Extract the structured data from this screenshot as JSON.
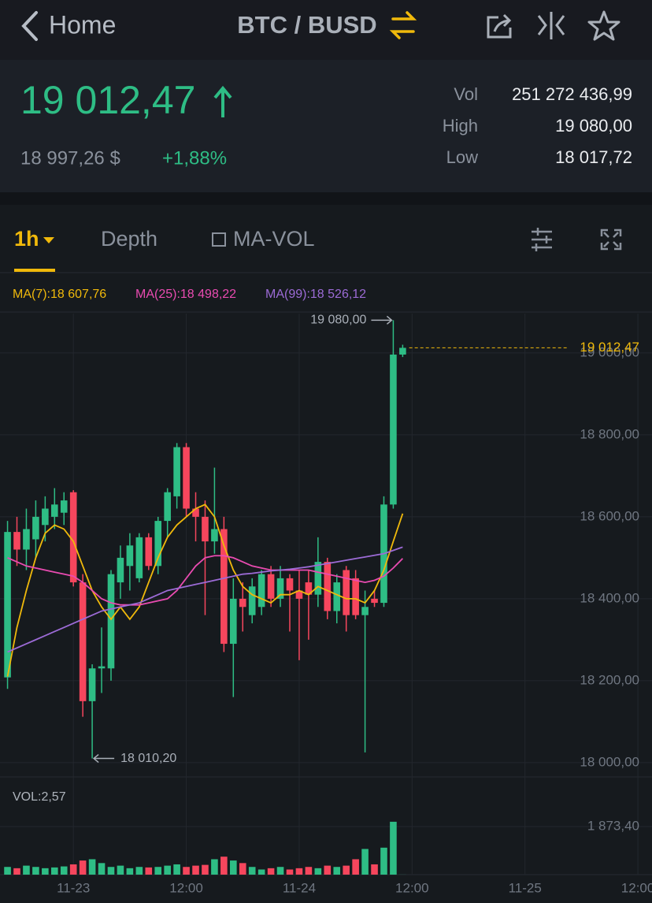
{
  "header": {
    "back": "Home",
    "pair": "BTC / BUSD"
  },
  "ticker": {
    "price": "19 012,47",
    "fiat": "18 997,26 $",
    "change": "+1,88%",
    "stats": [
      {
        "label": "Vol",
        "value": "251 272 436,99"
      },
      {
        "label": "High",
        "value": "19 080,00"
      },
      {
        "label": "Low",
        "value": "18 017,72"
      }
    ]
  },
  "tabs": [
    "1h",
    "Depth",
    "MA-VOL"
  ],
  "chart_data": [
    {
      "type": "candlestick",
      "x": [
        -7,
        -6,
        -5,
        -4,
        -3,
        -2,
        -1,
        0,
        1,
        2,
        3,
        4,
        5,
        6,
        7,
        8,
        9,
        10,
        11,
        12,
        13,
        14,
        15,
        16,
        17,
        18,
        19,
        20,
        21,
        22,
        23,
        24,
        25,
        26,
        27,
        28,
        29,
        30,
        31,
        32,
        33,
        34,
        35
      ],
      "open": [
        18208,
        18563,
        18520,
        18545,
        18580,
        18600,
        18610,
        18660,
        18440,
        18150,
        18230,
        18230,
        18440,
        18480,
        18450,
        18550,
        18480,
        18590,
        18650,
        18770,
        18620,
        18600,
        18540,
        18570,
        18290,
        18400,
        18360,
        18380,
        18460,
        18400,
        18450,
        18420,
        18440,
        18410,
        18490,
        18370,
        18470,
        18450,
        18360,
        18400,
        18390,
        18630,
        18996
      ],
      "high": [
        18590,
        18600,
        18620,
        18640,
        18650,
        18670,
        18660,
        18665,
        18460,
        18240,
        18330,
        18470,
        18530,
        18560,
        18560,
        18560,
        18600,
        18670,
        18780,
        18780,
        18660,
        18640,
        18720,
        18600,
        18450,
        18440,
        18450,
        18470,
        18480,
        18480,
        18460,
        18470,
        18470,
        18550,
        18500,
        18460,
        18480,
        18470,
        18420,
        18420,
        18650,
        19080,
        19020
      ],
      "low": [
        18180,
        18480,
        18470,
        18500,
        18540,
        18570,
        18580,
        18430,
        18112,
        18010.2,
        18170,
        18200,
        18400,
        18420,
        18440,
        18470,
        18460,
        18550,
        18620,
        18600,
        18540,
        18360,
        18510,
        18270,
        18160,
        18320,
        18340,
        18360,
        18380,
        18380,
        18320,
        18250,
        18300,
        18380,
        18350,
        18340,
        18320,
        18350,
        18025,
        18380,
        18380,
        18620,
        18990
      ],
      "close": [
        18563,
        18520,
        18570,
        18600,
        18620,
        18630,
        18640,
        18440,
        18150,
        18230,
        18235,
        18460,
        18500,
        18530,
        18550,
        18480,
        18590,
        18660,
        18770,
        18620,
        18600,
        18540,
        18570,
        18290,
        18400,
        18380,
        18430,
        18460,
        18400,
        18450,
        18420,
        18400,
        18410,
        18490,
        18370,
        18440,
        18360,
        18360,
        18380,
        18390,
        18630,
        18996,
        19012.47
      ],
      "up_color": "#2ebd85",
      "down_color": "#f6465d",
      "series": [
        {
          "name": "MA(7):18 607,76",
          "color": "#f0b90b",
          "values": [
            18210,
            18330,
            18420,
            18500,
            18560,
            18580,
            18570,
            18540,
            18480,
            18420,
            18380,
            18350,
            18380,
            18350,
            18380,
            18440,
            18500,
            18550,
            18580,
            18600,
            18620,
            18630,
            18600,
            18530,
            18470,
            18430,
            18410,
            18400,
            18390,
            18410,
            18410,
            18420,
            18410,
            18430,
            18420,
            18410,
            18400,
            18400,
            18390,
            18420,
            18470,
            18540,
            18607.76
          ]
        },
        {
          "name": "MA(25):18 498,22",
          "color": "#e94bb1",
          "values": [
            18500,
            18490,
            18480,
            18475,
            18470,
            18465,
            18460,
            18455,
            18440,
            18420,
            18400,
            18390,
            18385,
            18385,
            18385,
            18390,
            18395,
            18400,
            18420,
            18450,
            18480,
            18500,
            18505,
            18505,
            18500,
            18490,
            18480,
            18475,
            18470,
            18470,
            18470,
            18470,
            18470,
            18465,
            18460,
            18455,
            18450,
            18445,
            18440,
            18445,
            18455,
            18475,
            18498.22
          ]
        },
        {
          "name": "MA(99):18 526,12",
          "color": "#9c6bd6",
          "values": [
            18270,
            18280,
            18290,
            18300,
            18310,
            18320,
            18330,
            18340,
            18350,
            18360,
            18370,
            18375,
            18380,
            18385,
            18390,
            18400,
            18410,
            18420,
            18425,
            18430,
            18435,
            18440,
            18445,
            18450,
            18455,
            18460,
            18462,
            18465,
            18468,
            18470,
            18472,
            18475,
            18478,
            18482,
            18486,
            18490,
            18494,
            18498,
            18502,
            18506,
            18510,
            18518,
            18526.12
          ]
        }
      ],
      "xlim": [
        -7.8,
        61.5
      ],
      "xticks": [
        {
          "value": 0,
          "label": "11-23"
        },
        {
          "value": 12,
          "label": "12:00"
        },
        {
          "value": 24,
          "label": "11-24"
        },
        {
          "value": 36,
          "label": "12:00"
        },
        {
          "value": 48,
          "label": "11-25"
        },
        {
          "value": 60,
          "label": "12:00"
        }
      ],
      "ylim": [
        17967,
        19096
      ],
      "yticks": [
        {
          "value": 18000,
          "label": "18 000,00"
        },
        {
          "value": 18200,
          "label": "18 200,00"
        },
        {
          "value": 18400,
          "label": "18 400,00"
        },
        {
          "value": 18600,
          "label": "18 600,00"
        },
        {
          "value": 18800,
          "label": "18 800,00"
        },
        {
          "value": 19000,
          "label": "19 000,00"
        }
      ],
      "high_label": "19 080,00",
      "low_label": "18 010,20",
      "last_label": "19 012,47",
      "last_color": "#f0b90b",
      "grid": true
    },
    {
      "type": "bar",
      "title": "VOL:2,57",
      "values": [
        300,
        250,
        350,
        300,
        250,
        280,
        320,
        400,
        550,
        600,
        450,
        300,
        350,
        250,
        300,
        280,
        300,
        350,
        400,
        300,
        350,
        380,
        600,
        700,
        550,
        450,
        300,
        200,
        250,
        300,
        200,
        250,
        300,
        250,
        350,
        300,
        350,
        600,
        1000,
        400,
        1050,
        2060,
        2.57
      ],
      "ylim": [
        0,
        3530
      ],
      "yticks": [
        {
          "value": 1873.4,
          "label": "1 873,40"
        }
      ]
    }
  ]
}
